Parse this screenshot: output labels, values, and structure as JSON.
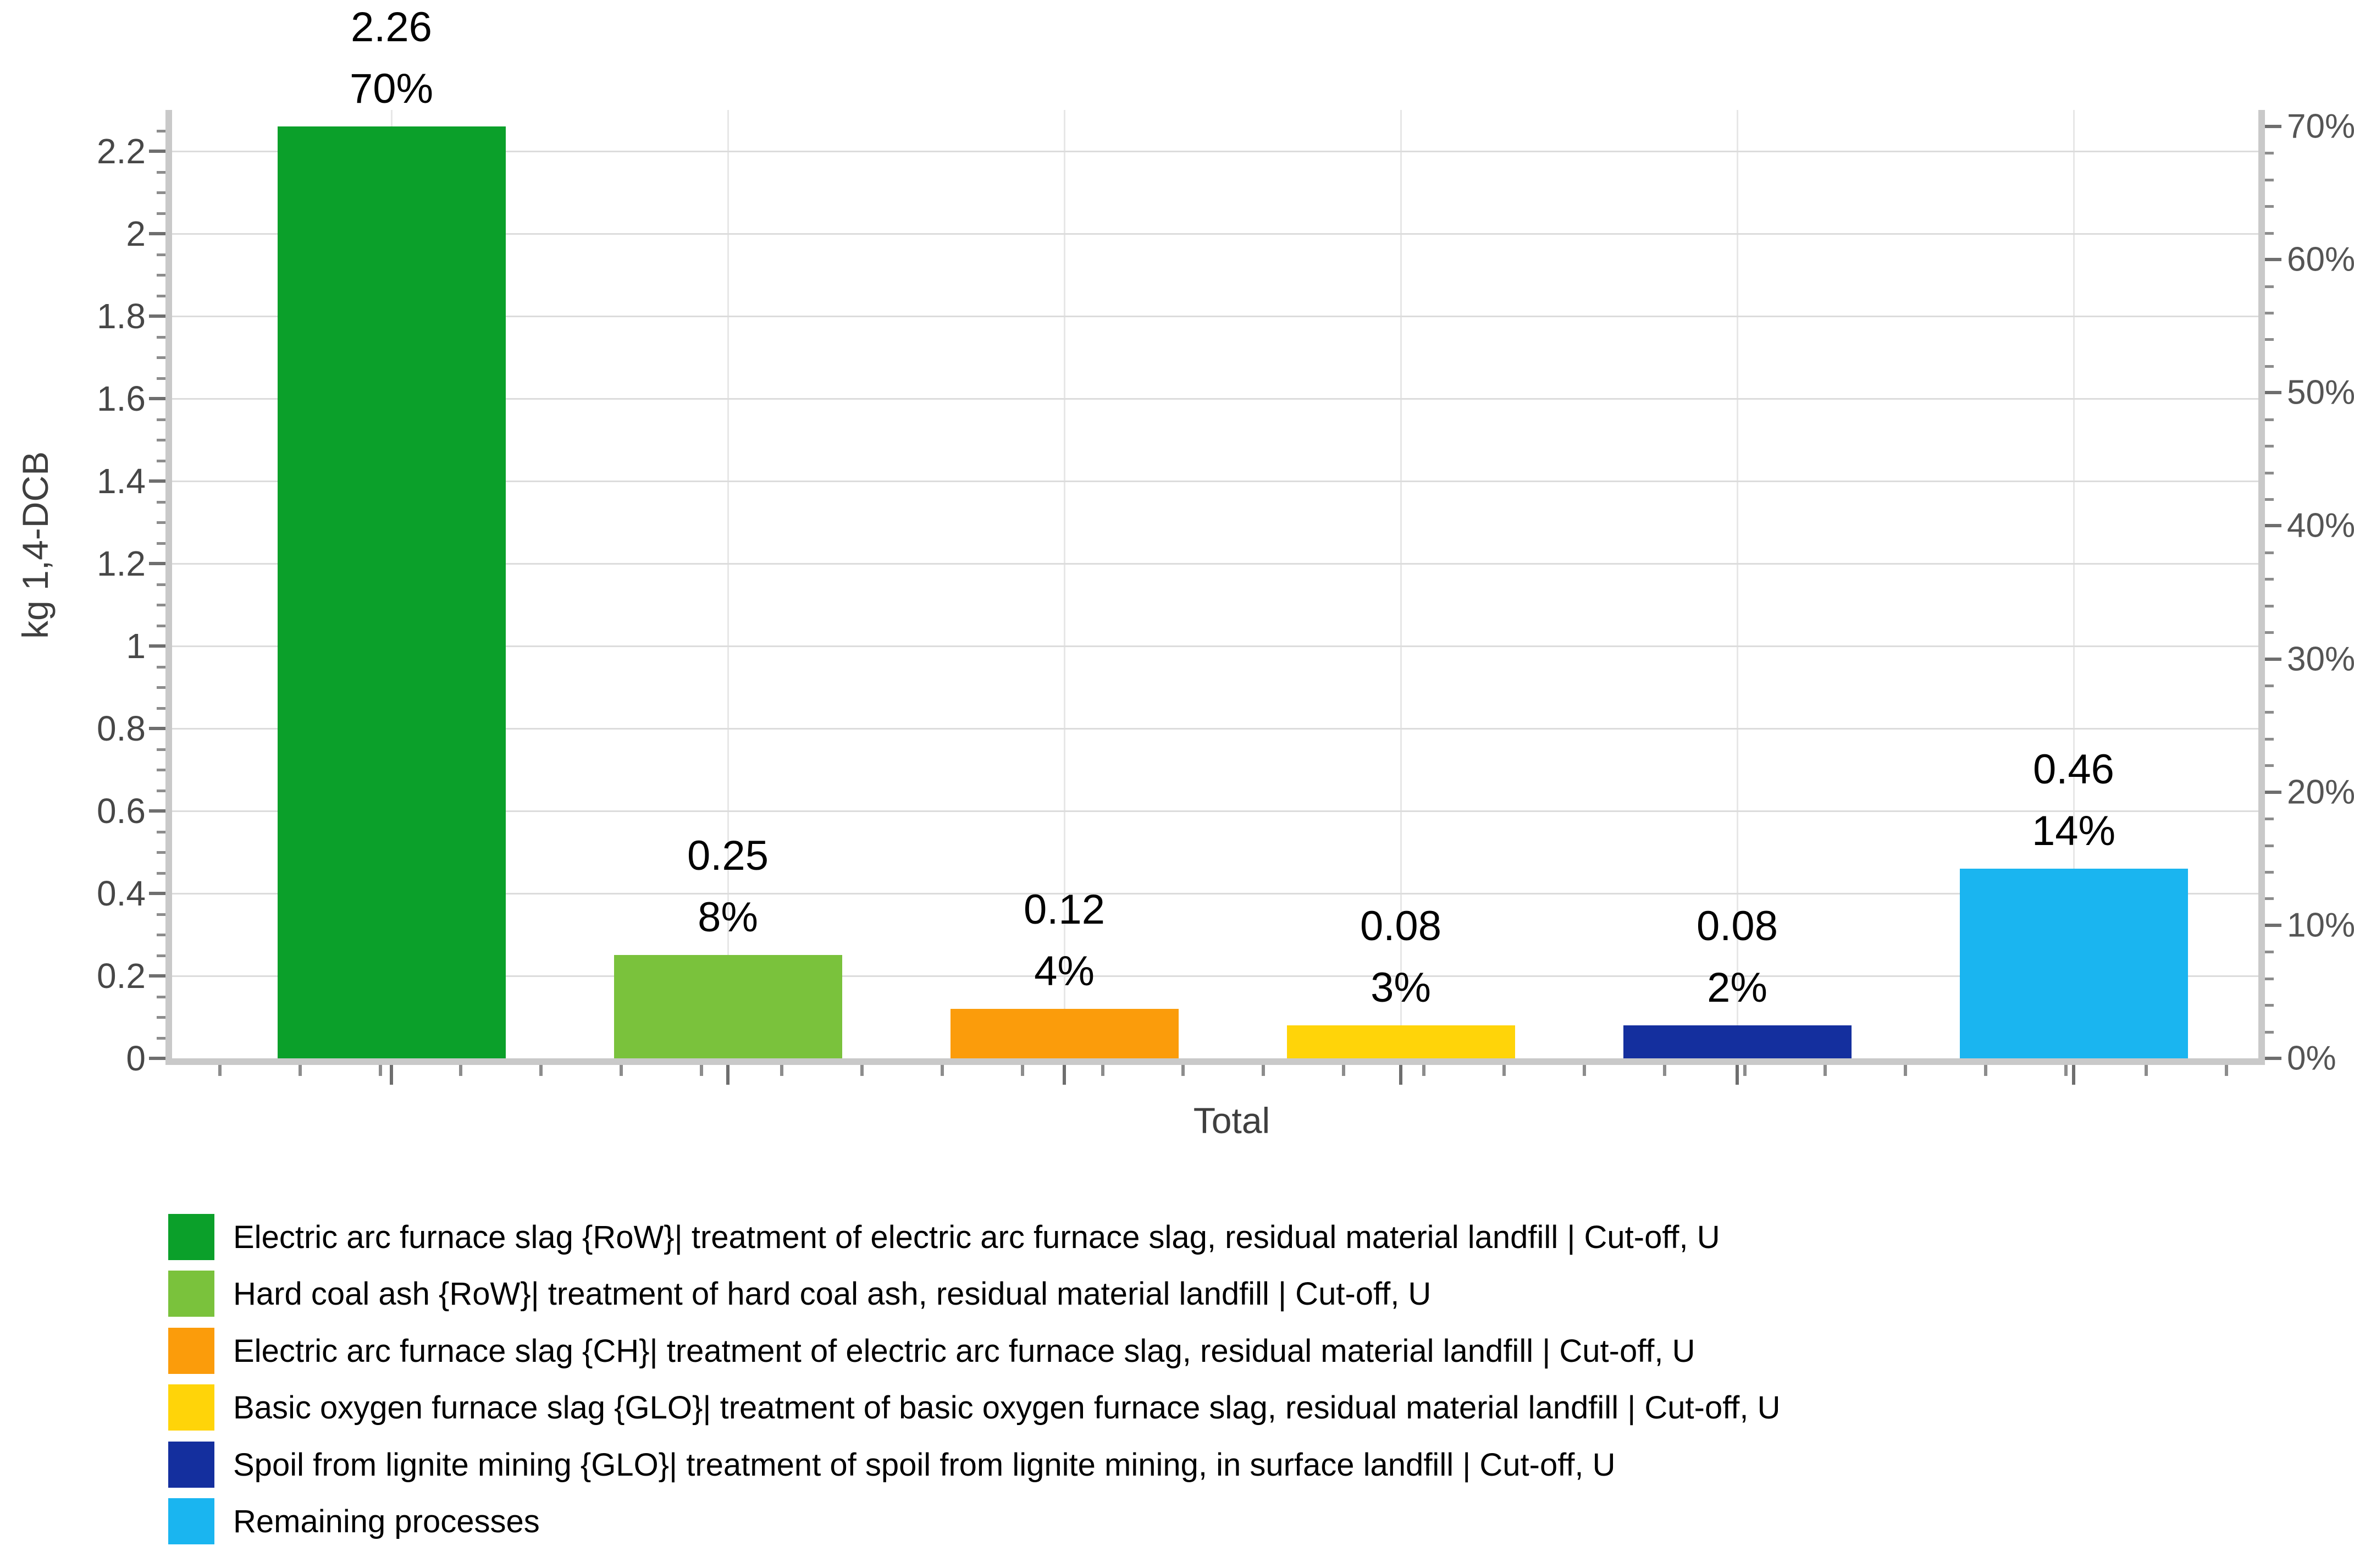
{
  "chart_data": {
    "type": "bar",
    "title": "",
    "categories": [
      "Total"
    ],
    "xlabel": "Total",
    "ylabel": "kg 1,4-DCB",
    "ylim_left": [
      0,
      2.3
    ],
    "left_axis_tick_labels": [
      "0",
      "0.2",
      "0.4",
      "0.6",
      "0.8",
      "1",
      "1.2",
      "1.4",
      "1.6",
      "1.8",
      "2",
      "2.2"
    ],
    "right_axis_tick_labels": [
      "0%",
      "10%",
      "20%",
      "30%",
      "40%",
      "50%",
      "60%",
      "70%"
    ],
    "right_axis_pct_per_left_unit": 30.97345,
    "grid": true,
    "legend_position": "bottom",
    "series": [
      {
        "name": "Electric arc furnace slag {RoW}| treatment of electric arc furnace slag, residual material landfill | Cut-off, U",
        "value": 2.26,
        "value_label": "2.26",
        "pct_label": "70%",
        "color": "#0ba02a"
      },
      {
        "name": "Hard coal ash {RoW}| treatment of hard coal ash, residual material landfill | Cut-off, U",
        "value": 0.25,
        "value_label": "0.25",
        "pct_label": "8%",
        "color": "#7ac23c"
      },
      {
        "name": "Electric arc furnace slag {CH}| treatment of electric arc furnace slag, residual material landfill | Cut-off, U",
        "value": 0.12,
        "value_label": "0.12",
        "pct_label": "4%",
        "color": "#fb9c0b"
      },
      {
        "name": "Basic oxygen furnace slag {GLO}| treatment of basic oxygen furnace slag, residual material landfill | Cut-off, U",
        "value": 0.08,
        "value_label": "0.08",
        "pct_label": "3%",
        "color": "#ffd409"
      },
      {
        "name": "Spoil from lignite mining {GLO}| treatment of spoil from lignite mining, in surface landfill | Cut-off, U",
        "value": 0.08,
        "value_label": "0.08",
        "pct_label": "2%",
        "color": "#142f9e"
      },
      {
        "name": "Remaining processes",
        "value": 0.46,
        "value_label": "0.46",
        "pct_label": "14%",
        "color": "#1ab5f0"
      }
    ]
  }
}
